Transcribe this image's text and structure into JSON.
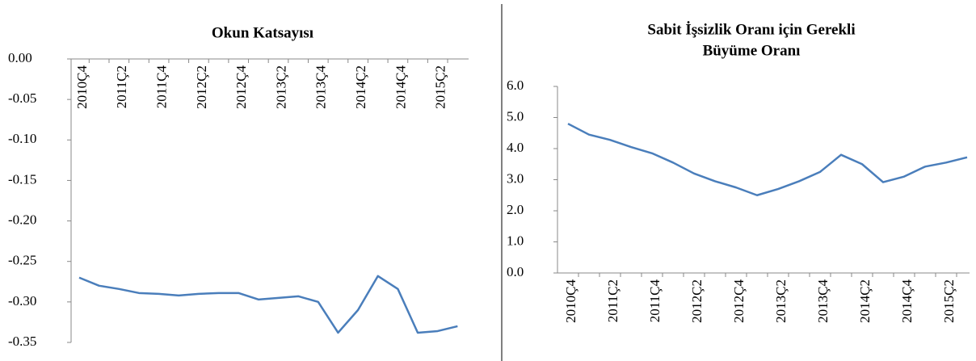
{
  "chart_data": [
    {
      "type": "line",
      "title": [
        "Okun Katsayısı"
      ],
      "categories": [
        "2010Ç4",
        null,
        "2011Ç2",
        null,
        "2011Ç4",
        null,
        "2012Ç2",
        null,
        "2012Ç4",
        null,
        "2013Ç2",
        null,
        "2013Ç4",
        null,
        "2014Ç2",
        null,
        "2014Ç4",
        null,
        "2015Ç2",
        null
      ],
      "series": [
        {
          "color": "#4a7ebb",
          "values": [
            -0.27,
            -0.28,
            -0.284,
            -0.289,
            -0.29,
            -0.292,
            -0.29,
            -0.289,
            -0.289,
            -0.297,
            -0.295,
            -0.293,
            -0.3,
            -0.338,
            -0.31,
            -0.268,
            -0.284,
            -0.338,
            -0.336,
            -0.33
          ]
        }
      ],
      "ylim": [
        -0.35,
        0
      ],
      "yticks": [
        {
          "value": 0,
          "label": "0.00"
        },
        {
          "value": -0.05,
          "label": "-0.05"
        },
        {
          "value": -0.1,
          "label": "-0.10"
        },
        {
          "value": -0.15,
          "label": "-0.15"
        },
        {
          "value": -0.2,
          "label": "-0.20"
        },
        {
          "value": -0.25,
          "label": "-0.25"
        },
        {
          "value": -0.3,
          "label": "-0.30"
        },
        {
          "value": -0.35,
          "label": "-0.35"
        }
      ]
    },
    {
      "type": "line",
      "title": [
        "Sabit İşsizlik Oranı için Gerekli",
        "Büyüme Oranı"
      ],
      "categories": [
        "2010Ç4",
        null,
        "2011Ç2",
        null,
        "2011Ç4",
        null,
        "2012Ç2",
        null,
        "2012Ç4",
        null,
        "2013Ç2",
        null,
        "2013Ç4",
        null,
        "2014Ç2",
        null,
        "2014Ç4",
        null,
        "2015Ç2",
        null
      ],
      "series": [
        {
          "color": "#4a7ebb",
          "values": [
            4.8,
            4.45,
            4.28,
            4.05,
            3.85,
            3.55,
            3.2,
            2.95,
            2.75,
            2.5,
            2.7,
            2.95,
            3.25,
            3.8,
            3.5,
            2.92,
            3.1,
            3.42,
            3.55,
            3.72
          ]
        }
      ],
      "ylim": [
        0,
        6
      ],
      "yticks": [
        {
          "value": 0,
          "label": "0.0"
        },
        {
          "value": 1,
          "label": "1.0"
        },
        {
          "value": 2,
          "label": "2.0"
        },
        {
          "value": 3,
          "label": "3.0"
        },
        {
          "value": 4,
          "label": "4.0"
        },
        {
          "value": 5,
          "label": "5.0"
        },
        {
          "value": 6,
          "label": "6.0"
        }
      ]
    }
  ]
}
